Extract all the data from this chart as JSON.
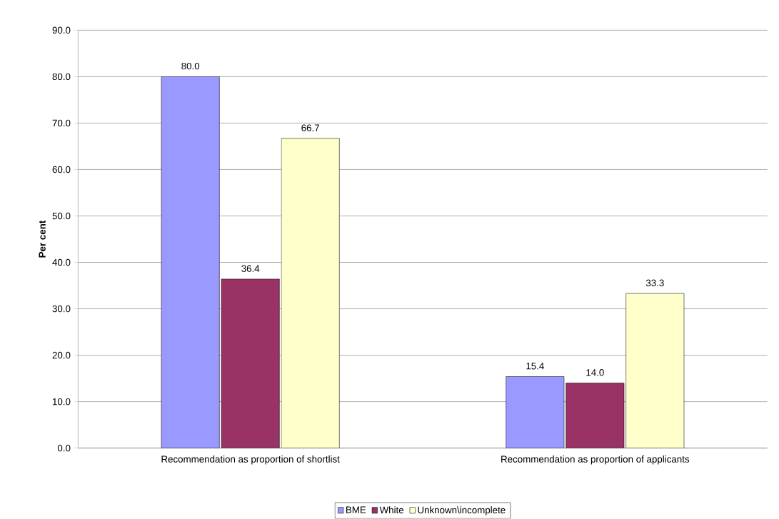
{
  "chart_data": {
    "type": "bar",
    "ylabel": "Per cent",
    "categories": [
      "Recommendation as proportion of shortlist",
      "Recommendation as proportion of applicants"
    ],
    "series": [
      {
        "name": "BME",
        "color": "#9999ff",
        "values": [
          80.0,
          15.4
        ],
        "value_labels": [
          "80.0",
          "15.4"
        ]
      },
      {
        "name": "White",
        "color": "#993366",
        "values": [
          36.4,
          14.0
        ],
        "value_labels": [
          "36.4",
          "14.0"
        ]
      },
      {
        "name": "Unknown\\incomplete",
        "color": "#ffffcc",
        "values": [
          66.7,
          33.3
        ],
        "value_labels": [
          "66.7",
          "33.3"
        ]
      }
    ],
    "ylim": [
      0,
      90
    ],
    "yticks": [
      {
        "value": 0,
        "label": "0.0"
      },
      {
        "value": 10,
        "label": "10.0"
      },
      {
        "value": 20,
        "label": "20.0"
      },
      {
        "value": 30,
        "label": "30.0"
      },
      {
        "value": 40,
        "label": "40.0"
      },
      {
        "value": 50,
        "label": "50.0"
      },
      {
        "value": 60,
        "label": "60.0"
      },
      {
        "value": 70,
        "label": "70.0"
      },
      {
        "value": 80,
        "label": "80.0"
      },
      {
        "value": 90,
        "label": "90.0"
      }
    ],
    "grid": "y",
    "legend": "bottom"
  }
}
